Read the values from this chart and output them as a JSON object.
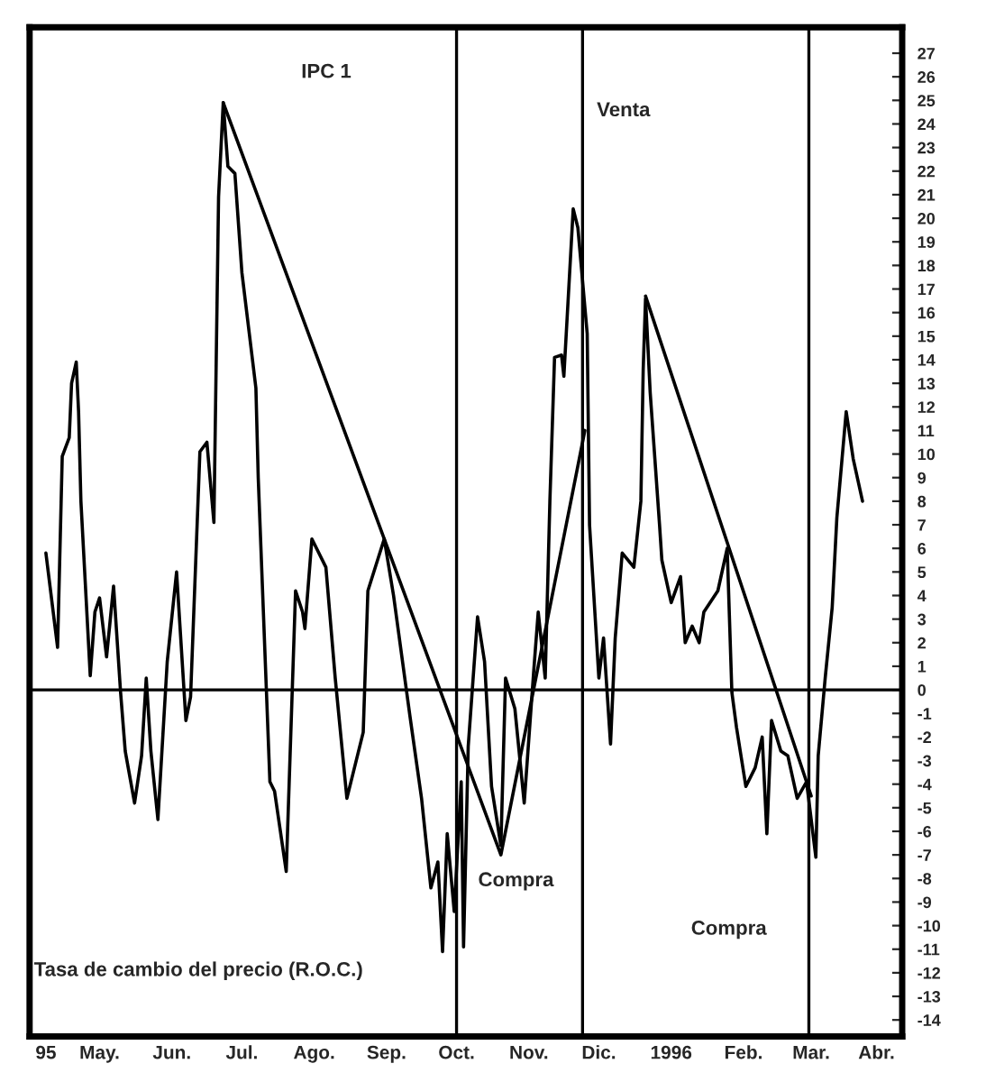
{
  "chart_data": {
    "type": "line",
    "title": "IPC 1",
    "annotations": [
      "Tasa de cambio del precio (R.O.C.)",
      "Venta",
      "Compra",
      "Compra"
    ],
    "series": [
      {
        "color": "#000000",
        "x": [
          "1995-04-22",
          "1995-04-27",
          "1995-04-29",
          "1995-05-02",
          "1995-05-03",
          "1995-05-05",
          "1995-05-06",
          "1995-05-07",
          "1995-05-11",
          "1995-05-13",
          "1995-05-15",
          "1995-05-18",
          "1995-05-21",
          "1995-05-24",
          "1995-05-26",
          "1995-05-30",
          "1995-06-02",
          "1995-06-04",
          "1995-06-06",
          "1995-06-09",
          "1995-06-13",
          "1995-06-17",
          "1995-06-21",
          "1995-06-23",
          "1995-06-27",
          "1995-06-30",
          "1995-07-03",
          "1995-07-05",
          "1995-07-07",
          "1995-07-09",
          "1995-07-12",
          "1995-07-15",
          "1995-07-21",
          "1995-07-22",
          "1995-07-27",
          "1995-07-29",
          "1995-08-03",
          "1995-08-07",
          "1995-08-10",
          "1995-08-11",
          "1995-08-14",
          "1995-08-20",
          "1995-08-24",
          "1995-08-29",
          "1995-09-05",
          "1995-09-07",
          "1995-09-14",
          "1995-09-18",
          "1995-09-25",
          "1995-09-30",
          "1995-10-04",
          "1995-10-07",
          "1995-10-09",
          "1995-10-11",
          "1995-10-14",
          "1995-10-17",
          "1995-10-18",
          "1995-10-20",
          "1995-10-24",
          "1995-10-27",
          "1995-10-30",
          "1995-11-03",
          "1995-11-05",
          "1995-11-09",
          "1995-11-13",
          "1995-11-17",
          "1995-11-19",
          "1995-11-22",
          "1995-11-24",
          "1995-11-26",
          "1995-11-29",
          "1995-11-30",
          "1995-12-04",
          "1995-12-06",
          "1995-12-10",
          "1995-12-11",
          "1995-12-15",
          "1995-12-17",
          "1995-12-20",
          "1995-12-22",
          "1995-12-25",
          "1995-12-30",
          "1996-01-02",
          "1996-01-03",
          "1996-01-04",
          "1996-01-06",
          "1996-01-10",
          "1996-01-11",
          "1996-01-15",
          "1996-01-19",
          "1996-01-21",
          "1996-01-24",
          "1996-01-27",
          "1996-01-29",
          "1996-02-04",
          "1996-02-08",
          "1996-02-10",
          "1996-02-12",
          "1996-02-16",
          "1996-02-20",
          "1996-02-23",
          "1996-02-25",
          "1996-02-27",
          "1996-03-02",
          "1996-03-05",
          "1996-03-09",
          "1996-03-13",
          "1996-03-17",
          "1996-03-18",
          "1996-03-21",
          "1996-03-24",
          "1996-03-26",
          "1996-03-30",
          "1996-04-02",
          "1996-04-06"
        ],
        "values": [
          5.8,
          1.8,
          9.9,
          10.7,
          13.0,
          13.9,
          11.8,
          8.0,
          0.6,
          3.3,
          3.9,
          1.4,
          4.4,
          -0.1,
          -2.6,
          -4.8,
          -2.8,
          0.5,
          -2.6,
          -5.5,
          1.2,
          5.0,
          -1.3,
          -0.3,
          10.1,
          10.5,
          7.1,
          20.9,
          24.9,
          22.2,
          21.9,
          17.7,
          12.8,
          9.0,
          -3.9,
          -4.3,
          -7.7,
          4.2,
          3.3,
          2.6,
          6.4,
          5.2,
          0.5,
          -4.6,
          -1.8,
          4.2,
          6.4,
          4.0,
          -1.1,
          -4.6,
          -8.4,
          -7.3,
          -11.1,
          -6.1,
          -9.4,
          -3.9,
          -10.9,
          -2.4,
          3.1,
          1.2,
          -4.1,
          -6.6,
          0.5,
          -0.8,
          -4.8,
          0.7,
          3.3,
          0.5,
          8.0,
          14.1,
          14.2,
          13.3,
          20.4,
          19.6,
          15.1,
          7.0,
          0.5,
          2.2,
          -2.3,
          2.2,
          5.8,
          5.2,
          8.0,
          13.6,
          16.6,
          12.6,
          7.0,
          5.5,
          3.7,
          4.8,
          2.0,
          2.7,
          2.0,
          3.3,
          4.2,
          6.0,
          -0.1,
          -1.6,
          -4.1,
          -3.3,
          -2.0,
          -6.1,
          -1.3,
          -2.6,
          -2.8,
          -4.6,
          -3.9,
          -7.1,
          -2.8,
          0.5,
          3.5,
          7.3,
          11.8,
          9.8,
          8.0
        ]
      },
      {
        "color": "#000000",
        "x": [
          "1995-07-07",
          "1995-11-03",
          "1995-12-09"
        ],
        "values": [
          24.9,
          -7.0,
          11.0
        ]
      },
      {
        "color": "#000000",
        "x": [
          "1996-01-04",
          "1996-03-15"
        ],
        "values": [
          16.7,
          -4.5
        ]
      }
    ],
    "ref_lines": [
      {
        "axis": "y",
        "value": 0,
        "color": "#000000"
      },
      {
        "axis": "x",
        "value": "1995-10-15",
        "color": "#000000"
      },
      {
        "axis": "x",
        "value": "1995-12-08",
        "color": "#000000"
      },
      {
        "axis": "x",
        "value": "1996-03-14",
        "color": "#000000"
      }
    ],
    "xlim": [
      "1995-04-15",
      "1996-04-23"
    ],
    "xticks": [
      {
        "value": "1995-04-22",
        "label": "95"
      },
      {
        "value": "1995-05-15",
        "label": "May."
      },
      {
        "value": "1995-06-15",
        "label": "Jun."
      },
      {
        "value": "1995-07-15",
        "label": "Jul."
      },
      {
        "value": "1995-08-15",
        "label": "Ago."
      },
      {
        "value": "1995-09-15",
        "label": "Sep."
      },
      {
        "value": "1995-10-15",
        "label": "Oct."
      },
      {
        "value": "1995-11-15",
        "label": "Nov."
      },
      {
        "value": "1995-12-15",
        "label": "Dic."
      },
      {
        "value": "1996-01-15",
        "label": "1996"
      },
      {
        "value": "1996-02-15",
        "label": "Feb."
      },
      {
        "value": "1996-03-15",
        "label": "Mar."
      },
      {
        "value": "1996-04-12",
        "label": "Abr."
      }
    ],
    "ylim": [
      -14.7,
      28.1
    ],
    "yticks": [
      -14,
      -13,
      -12,
      -11,
      -10,
      -9,
      -8,
      -7,
      -6,
      -5,
      -4,
      -3,
      -2,
      -1,
      0,
      1,
      2,
      3,
      4,
      5,
      6,
      7,
      8,
      9,
      10,
      11,
      12,
      13,
      14,
      15,
      16,
      17,
      18,
      19,
      20,
      21,
      22,
      23,
      24,
      25,
      26,
      27
    ],
    "grid": false,
    "legend": false,
    "marker": "none",
    "line_style": "solid"
  }
}
